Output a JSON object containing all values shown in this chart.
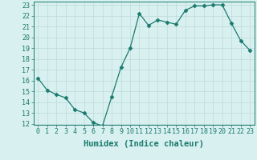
{
  "x": [
    0,
    1,
    2,
    3,
    4,
    5,
    6,
    7,
    8,
    9,
    10,
    11,
    12,
    13,
    14,
    15,
    16,
    17,
    18,
    19,
    20,
    21,
    22,
    23
  ],
  "y": [
    16.2,
    15.1,
    14.7,
    14.4,
    13.3,
    13.0,
    12.1,
    11.8,
    14.5,
    17.2,
    19.0,
    22.2,
    21.1,
    21.6,
    21.4,
    21.2,
    22.5,
    22.9,
    22.9,
    23.0,
    23.0,
    21.3,
    19.7,
    18.8
  ],
  "line_color": "#1a7a6e",
  "marker": "D",
  "marker_size": 2.5,
  "bg_color": "#d9f0f0",
  "grid_color": "#c0dede",
  "xlabel": "Humidex (Indice chaleur)",
  "ylim": [
    12,
    23
  ],
  "xlim": [
    0,
    23
  ],
  "yticks": [
    12,
    13,
    14,
    15,
    16,
    17,
    18,
    19,
    20,
    21,
    22,
    23
  ],
  "xticks": [
    0,
    1,
    2,
    3,
    4,
    5,
    6,
    7,
    8,
    9,
    10,
    11,
    12,
    13,
    14,
    15,
    16,
    17,
    18,
    19,
    20,
    21,
    22,
    23
  ],
  "tick_label_fontsize": 6,
  "xlabel_fontsize": 7.5
}
